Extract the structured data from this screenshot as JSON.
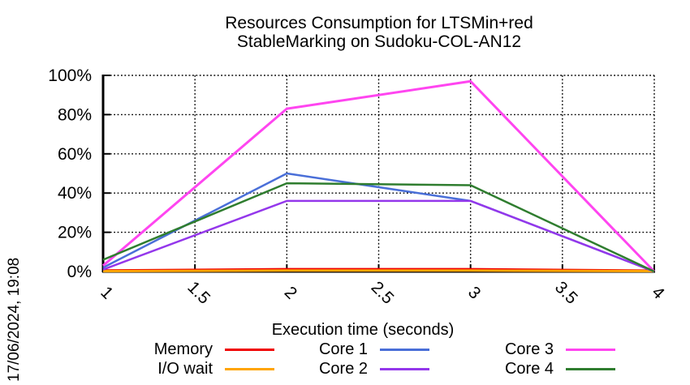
{
  "title": {
    "line1": "Resources Consumption for LTSMin+red",
    "line2": "StableMarking on Sudoku-COL-AN12"
  },
  "timestamp": "17/06/2024, 19:08",
  "chart_data": {
    "type": "line",
    "title": "Resources Consumption for LTSMin+red StableMarking on Sudoku-COL-AN12",
    "xlabel": "Execution time (seconds)",
    "ylabel": "",
    "xlim": [
      1,
      4
    ],
    "ylim": [
      0,
      100
    ],
    "x_ticks": [
      1,
      1.5,
      2,
      2.5,
      3,
      3.5,
      4
    ],
    "x_tick_labels": [
      "1",
      "1.5",
      "2",
      "2.5",
      "3",
      "3.5",
      "4"
    ],
    "y_ticks": [
      0,
      20,
      40,
      60,
      80,
      100
    ],
    "y_tick_labels": [
      "0%",
      "20%",
      "40%",
      "60%",
      "80%",
      "100%"
    ],
    "grid": true,
    "grid_style": "dotted-black",
    "legend_position": "bottom",
    "x": [
      1,
      2,
      3,
      4
    ],
    "series": [
      {
        "name": "Memory",
        "color": "#f00000",
        "width": 3,
        "values": [
          0.5,
          1.2,
          1.2,
          0.4
        ]
      },
      {
        "name": "I/O wait",
        "color": "#ffa500",
        "width": 3,
        "values": [
          0.2,
          0.5,
          0.5,
          0.2
        ]
      },
      {
        "name": "Core 1",
        "color": "#4a6fd8",
        "width": 2.5,
        "values": [
          2,
          50,
          36,
          0
        ]
      },
      {
        "name": "Core 2",
        "color": "#9437eb",
        "width": 2.5,
        "values": [
          1,
          36,
          36,
          0
        ]
      },
      {
        "name": "Core 3",
        "color": "#ff45f0",
        "width": 3,
        "values": [
          3,
          83,
          97,
          0
        ]
      },
      {
        "name": "Core 4",
        "color": "#2f7d2f",
        "width": 2.5,
        "values": [
          6,
          45,
          44,
          0
        ]
      }
    ]
  },
  "legend": {
    "cells": [
      {
        "series": 0,
        "col": 1,
        "row": 1
      },
      {
        "series": 1,
        "col": 1,
        "row": 2
      },
      {
        "series": 2,
        "col": 2,
        "row": 1
      },
      {
        "series": 3,
        "col": 2,
        "row": 2
      },
      {
        "series": 4,
        "col": 3,
        "row": 1
      },
      {
        "series": 5,
        "col": 3,
        "row": 2
      }
    ]
  },
  "colors": {
    "axis": "#000000",
    "grid": "#000000",
    "background": "#ffffff",
    "text": "#000000"
  }
}
